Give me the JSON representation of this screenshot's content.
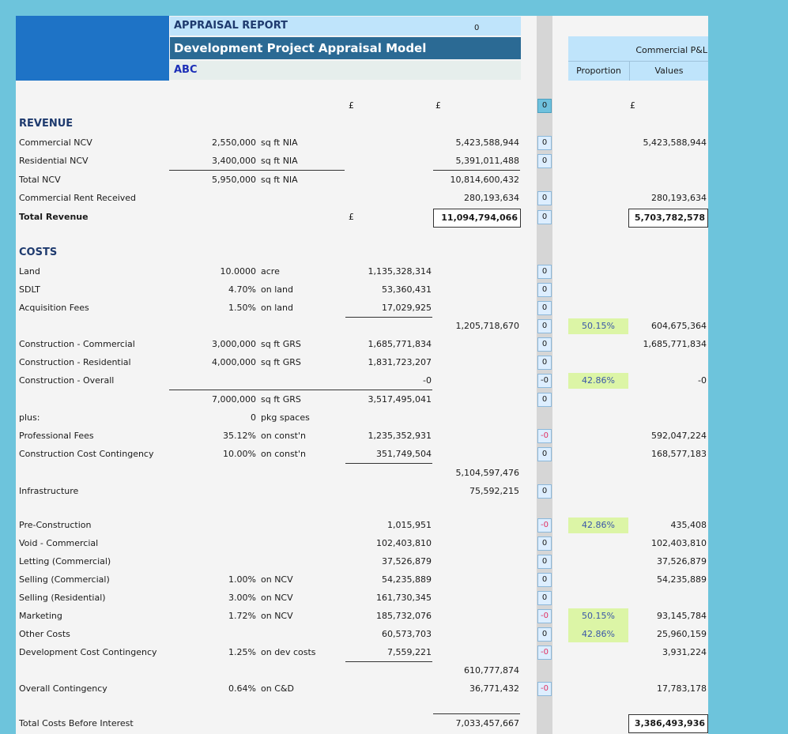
{
  "header": {
    "report_title": "APPRAISAL REPORT",
    "report_flag": "0",
    "model_title": "Development Project Appraisal Model",
    "project_name": "ABC"
  },
  "pl_header": {
    "title": "Commercial P&L",
    "col_proportion": "Proportion",
    "col_values": "Values"
  },
  "currency": {
    "col1": "£",
    "col2": "£",
    "col3": "£",
    "pl": "£",
    "total_revenue": "£"
  },
  "top_flag": "0",
  "revenue": {
    "heading": "REVENUE",
    "commercial_ncv": {
      "label": "Commercial NCV",
      "qty": "2,550,000",
      "unit": "sq ft NIA",
      "value": "5,423,588,944",
      "flag": "0",
      "pl": "5,423,588,944"
    },
    "residential_ncv": {
      "label": "Residential NCV",
      "qty": "3,400,000",
      "unit": "sq ft NIA",
      "value": "5,391,011,488",
      "flag": "0"
    },
    "total_ncv": {
      "label": "Total NCV",
      "qty": "5,950,000",
      "unit": "sq ft NIA",
      "value": "10,814,600,432"
    },
    "rent": {
      "label": "Commercial Rent Received",
      "value": "280,193,634",
      "flag": "0",
      "pl": "280,193,634"
    },
    "total": {
      "label": "Total Revenue",
      "value": "11,094,794,066",
      "flag": "0",
      "pl": "5,703,782,578"
    }
  },
  "costs": {
    "heading": "COSTS",
    "land": {
      "label": "Land",
      "qty": "10.0000",
      "unit": "acre",
      "sub": "1,135,328,314",
      "flag": "0"
    },
    "sdlt": {
      "label": "SDLT",
      "qty": "4.70%",
      "unit": "on land",
      "sub": "53,360,431",
      "flag": "0"
    },
    "acq": {
      "label": "Acquisition Fees",
      "qty": "1.50%",
      "unit": "on land",
      "sub": "17,029,925",
      "flag": "0"
    },
    "land_total": {
      "value": "1,205,718,670",
      "flag": "0",
      "prop": "50.15%",
      "pl": "604,675,364"
    },
    "con_comm": {
      "label": "Construction - Commercial",
      "qty": "3,000,000",
      "unit": "sq ft GRS",
      "sub": "1,685,771,834",
      "flag": "0",
      "pl": "1,685,771,834"
    },
    "con_res": {
      "label": "Construction - Residential",
      "qty": "4,000,000",
      "unit": "sq ft GRS",
      "sub": "1,831,723,207",
      "flag": "0"
    },
    "con_all": {
      "label": "Construction - Overall",
      "sub": "-0",
      "flag": "-0",
      "prop": "42.86%",
      "pl": "-0"
    },
    "con_total": {
      "qty": "7,000,000",
      "unit": "sq ft GRS",
      "sub": "3,517,495,041",
      "flag": "0"
    },
    "plus": {
      "label": "plus:",
      "qty": "0",
      "unit": "pkg spaces"
    },
    "prof_fees": {
      "label": "Professional Fees",
      "qty": "35.12%",
      "unit": "on const'n",
      "sub": "1,235,352,931",
      "flag": "-0",
      "pl": "592,047,224"
    },
    "con_cont": {
      "label": "Construction Cost Contingency",
      "qty": "10.00%",
      "unit": "on const'n",
      "sub": "351,749,504",
      "flag": "0",
      "pl": "168,577,183"
    },
    "build_total": {
      "value": "5,104,597,476"
    },
    "infra": {
      "label": "Infrastructure",
      "value": "75,592,215",
      "flag": "0"
    },
    "precon": {
      "label": "Pre-Construction",
      "sub": "1,015,951",
      "flag": "-0",
      "prop": "42.86%",
      "pl": "435,408"
    },
    "void": {
      "label": "Void - Commercial",
      "sub": "102,403,810",
      "flag": "0",
      "pl": "102,403,810"
    },
    "letting": {
      "label": "Letting (Commercial)",
      "sub": "37,526,879",
      "flag": "0",
      "pl": "37,526,879"
    },
    "sell_comm": {
      "label": "Selling (Commercial)",
      "qty": "1.00%",
      "unit": "on NCV",
      "sub": "54,235,889",
      "flag": "0",
      "pl": "54,235,889"
    },
    "sell_res": {
      "label": "Selling (Residential)",
      "qty": "3.00%",
      "unit": "on NCV",
      "sub": "161,730,345",
      "flag": "0"
    },
    "marketing": {
      "label": "Marketing",
      "qty": "1.72%",
      "unit": "on NCV",
      "sub": "185,732,076",
      "flag": "-0",
      "prop": "50.15%",
      "pl": "93,145,784"
    },
    "other": {
      "label": "Other Costs",
      "sub": "60,573,703",
      "flag": "0",
      "prop": "42.86%",
      "pl": "25,960,159"
    },
    "dev_cont": {
      "label": "Development Cost Contingency",
      "qty": "1.25%",
      "unit": "on dev costs",
      "sub": "7,559,221",
      "flag": "-0",
      "pl": "3,931,224"
    },
    "other_total": {
      "value": "610,777,874"
    },
    "overall_cont": {
      "label": "Overall Contingency",
      "qty": "0.64%",
      "unit": "on C&D",
      "value": "36,771,432",
      "flag": "-0",
      "pl": "17,783,178"
    },
    "total_before_interest": {
      "label": "Total Costs Before Interest",
      "value": "7,033,457,667",
      "pl": "3,386,493,936"
    }
  }
}
